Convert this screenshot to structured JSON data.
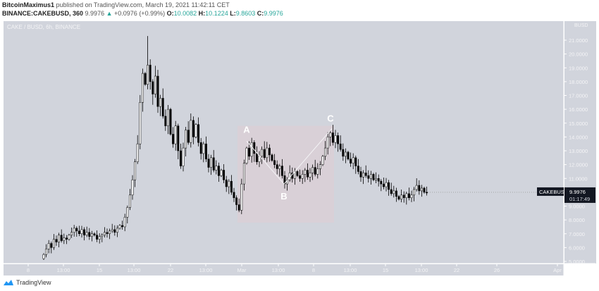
{
  "header": {
    "author": "BitcoinMaximus1",
    "published": "published on TradingView.com, March 19, 2021 11:42:11 CET",
    "symbol": "BINANCE:CAKEBUSD, 360",
    "last": "9.9976",
    "change": "+0.0976 (+0.99%)",
    "o_label": "O:",
    "o": "10.0082",
    "h_label": "H:",
    "h": "10.1224",
    "l_label": "L:",
    "l": "9.8603",
    "c_label": "C:",
    "c": "9.9976"
  },
  "chart_data": {
    "type": "candlestick",
    "title": "CAKE / BUSD, 6h, BINANCE",
    "ylabel": "BUSD",
    "ylim": [
      5,
      22
    ],
    "yticks": [
      "21.0000",
      "20.0000",
      "19.0000",
      "18.0000",
      "17.0000",
      "16.0000",
      "15.0000",
      "14.0000",
      "13.0000",
      "12.0000",
      "11.0000",
      "9.0000",
      "8.0000",
      "7.0000",
      "6.0000",
      "5.0000"
    ],
    "xticks": [
      "8",
      "13:00",
      "15",
      "13:00",
      "22",
      "13:00",
      "Mar",
      "13:00",
      "8",
      "13:00",
      "15",
      "13:00",
      "22",
      "26",
      "Apr"
    ],
    "closes": [
      5.5,
      5.9,
      6.3,
      6.0,
      6.6,
      6.4,
      6.9,
      6.5,
      6.7,
      6.6,
      6.9,
      7.1,
      7.4,
      7.2,
      7.0,
      7.3,
      6.9,
      7.1,
      6.8,
      7.0,
      6.9,
      6.6,
      6.8,
      6.9,
      7.1,
      7.0,
      7.2,
      7.3,
      7.1,
      7.4,
      7.6,
      7.5,
      8.2,
      8.9,
      9.8,
      10.9,
      12.2,
      13.5,
      16.5,
      18.6,
      17.8,
      19.2,
      18.0,
      17.1,
      18.4,
      16.2,
      16.8,
      15.5,
      14.8,
      16.0,
      14.2,
      13.5,
      14.8,
      13.0,
      11.9,
      13.2,
      14.5,
      13.6,
      15.2,
      14.0,
      14.9,
      13.6,
      12.8,
      13.5,
      12.4,
      11.8,
      12.5,
      11.6,
      11.9,
      11.2,
      11.6,
      10.9,
      10.4,
      10.8,
      10.0,
      9.6,
      9.1,
      8.7,
      10.6,
      12.1,
      13.2,
      12.6,
      13.6,
      12.8,
      12.2,
      12.6,
      13.1,
      12.5,
      13.2,
      12.7,
      12.3,
      12.0,
      11.7,
      11.9,
      11.2,
      10.6,
      10.9,
      11.4,
      11.0,
      11.5,
      11.2,
      11.0,
      11.3,
      11.6,
      11.1,
      11.4,
      11.8,
      11.3,
      11.7,
      12.0,
      12.6,
      13.2,
      14.0,
      14.3,
      13.6,
      14.1,
      13.5,
      13.1,
      12.6,
      12.9,
      12.4,
      12.1,
      12.5,
      11.9,
      11.5,
      11.1,
      11.4,
      11.2,
      11.0,
      11.3,
      10.9,
      11.0,
      10.8,
      10.6,
      10.4,
      10.7,
      10.2,
      9.9,
      10.1,
      9.7,
      9.5,
      9.8,
      9.6,
      9.9,
      9.6,
      9.8,
      10.2,
      10.5,
      10.1,
      10.3,
      10.0,
      9.9976
    ],
    "spike_high": 21.3,
    "current_price": {
      "symbol": "CAKEBUSD",
      "price": "9.9976",
      "countdown": "01:17:49"
    },
    "annotations": {
      "labels": [
        "A",
        "B",
        "C"
      ],
      "pattern_prices": [
        13.7,
        10.6,
        14.6
      ],
      "range_box": [
        7.8,
        14.8
      ]
    }
  },
  "footer": {
    "brand": "TradingView"
  },
  "colors": {
    "bg": "#d1d4dc",
    "box": "#d9d0d7",
    "up": "#ffffff",
    "down": "#000000"
  }
}
